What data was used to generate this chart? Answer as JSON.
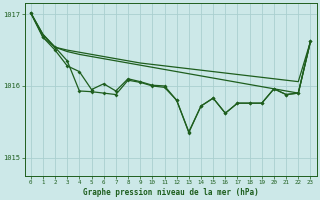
{
  "bg_color": "#cce8e8",
  "grid_color": "#aacfcf",
  "line_color": "#1e5e1e",
  "title": "Graphe pression niveau de la mer (hPa)",
  "yticks": [
    1015,
    1016,
    1017
  ],
  "xlim": [
    -0.5,
    23.5
  ],
  "ylim": [
    1014.75,
    1017.15
  ],
  "x": [
    0,
    1,
    2,
    3,
    4,
    5,
    6,
    7,
    8,
    9,
    10,
    11,
    12,
    13,
    14,
    15,
    16,
    17,
    18,
    19,
    20,
    21,
    22,
    23
  ],
  "straight1": [
    1017.02,
    1016.72,
    1016.54,
    1016.48,
    1016.44,
    1016.41,
    1016.38,
    1016.35,
    1016.32,
    1016.29,
    1016.26,
    1016.23,
    1016.2,
    1016.17,
    1016.14,
    1016.11,
    1016.08,
    1016.05,
    1016.02,
    1015.99,
    1015.96,
    1015.93,
    1015.9,
    1016.62
  ],
  "straight2": [
    1017.02,
    1016.72,
    1016.54,
    1016.5,
    1016.47,
    1016.44,
    1016.41,
    1016.38,
    1016.35,
    1016.32,
    1016.3,
    1016.28,
    1016.26,
    1016.24,
    1016.22,
    1016.2,
    1016.18,
    1016.16,
    1016.14,
    1016.12,
    1016.1,
    1016.08,
    1016.06,
    1016.62
  ],
  "wavy1": [
    1017.02,
    1016.68,
    1016.54,
    1016.35,
    1015.93,
    1015.92,
    1015.9,
    1015.88,
    1016.08,
    1016.05,
    1016.0,
    1015.98,
    1015.8,
    1015.35,
    1015.72,
    1015.83,
    1015.62,
    1015.76,
    1015.76,
    1015.76,
    1015.96,
    1015.88,
    1015.9,
    1016.62
  ],
  "wavy2": [
    1017.02,
    1016.68,
    1016.5,
    1016.28,
    1016.2,
    1015.95,
    1016.03,
    1015.93,
    1016.1,
    1016.06,
    1016.01,
    1016.0,
    1015.8,
    1015.36,
    1015.72,
    1015.83,
    1015.62,
    1015.76,
    1015.76,
    1015.76,
    1015.96,
    1015.88,
    1015.9,
    1016.62
  ]
}
